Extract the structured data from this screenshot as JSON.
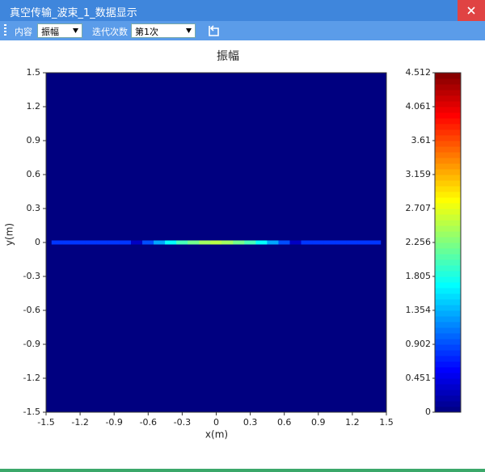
{
  "window": {
    "title": "真空传输_波束_1_数据显示"
  },
  "toolbar": {
    "content_label": "内容",
    "content_value": "振幅",
    "iteration_label": "迭代次数",
    "iteration_value": "第1次"
  },
  "chart_data": {
    "type": "heatmap",
    "title": "振幅",
    "x_label": "x(m)",
    "y_label": "y(m)",
    "xlim": [
      -1.5,
      1.5
    ],
    "ylim": [
      -1.5,
      1.5
    ],
    "xticks": [
      -1.5,
      -1.2,
      -0.9,
      -0.6,
      -0.3,
      0,
      0.3,
      0.6,
      0.9,
      1.2,
      1.5
    ],
    "yticks": [
      -1.5,
      -1.2,
      -0.9,
      -0.6,
      -0.3,
      0,
      0.3,
      0.6,
      0.9,
      1.2,
      1.5
    ],
    "x": [
      -1.4,
      -1.3,
      -1.2,
      -1.1,
      -1.0,
      -0.9,
      -0.8,
      -0.7,
      -0.6,
      -0.5,
      -0.4,
      -0.3,
      -0.2,
      -0.1,
      0,
      0.1,
      0.2,
      0.3,
      0.4,
      0.5,
      0.6,
      0.7,
      0.8,
      0.9,
      1.0,
      1.1,
      1.2,
      1.3,
      1.4
    ],
    "y": [
      0
    ],
    "z": [
      [
        0.8,
        0.8,
        0.8,
        0.8,
        0.8,
        0.8,
        0.8,
        0.3,
        0.9,
        1.3,
        1.7,
        2.0,
        2.2,
        2.4,
        2.5,
        2.4,
        2.2,
        2.0,
        1.7,
        1.3,
        0.9,
        0.3,
        0.8,
        0.8,
        0.8,
        0.8,
        0.8,
        0.8,
        0.8
      ]
    ],
    "colorbar": {
      "lim": [
        0,
        4.512
      ],
      "ticks": [
        0,
        0.451,
        0.902,
        1.354,
        1.805,
        2.256,
        2.707,
        3.159,
        3.61,
        4.061,
        4.512
      ]
    }
  }
}
